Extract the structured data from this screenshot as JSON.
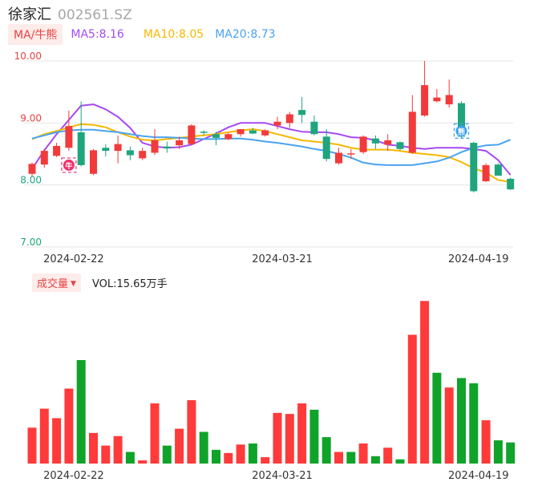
{
  "header": {
    "name": "徐家汇",
    "code": "002561.SZ"
  },
  "ma_legend": {
    "tag": "MA/牛熊",
    "items": [
      {
        "label": "MA5:8.16",
        "color": "#a64af0"
      },
      {
        "label": "MA10:8.05",
        "color": "#f5b800"
      },
      {
        "label": "MA20:8.73",
        "color": "#4aa3f0"
      }
    ]
  },
  "volume_legend": {
    "tag": "成交量",
    "value": "VOL:15.65万手"
  },
  "colors": {
    "up": "#f23a3a",
    "down": "#1fa57e",
    "vol_up": "#ff3a3a",
    "vol_down": "#10a32a",
    "grid": "#e6e6e6"
  },
  "icons": {
    "bull": "bull-icon",
    "bear": "bear-icon"
  },
  "chart_data": [
    {
      "type": "candlestick",
      "title": "",
      "ylim": [
        7.0,
        10.0
      ],
      "y_ticks": [
        "10.00",
        "9.00",
        "8.00",
        "7.00"
      ],
      "x_ticks": [
        "2024-02-22",
        "2024-03-21",
        "2024-04-19"
      ],
      "x_tick_index": [
        3,
        20,
        36
      ],
      "candles": [
        {
          "o": 8.18,
          "h": 8.36,
          "l": 8.14,
          "c": 8.34
        },
        {
          "o": 8.33,
          "h": 8.58,
          "l": 8.28,
          "c": 8.55
        },
        {
          "o": 8.47,
          "h": 8.68,
          "l": 8.45,
          "c": 8.63
        },
        {
          "o": 8.6,
          "h": 9.2,
          "l": 8.55,
          "c": 8.95
        },
        {
          "o": 8.85,
          "h": 9.35,
          "l": 8.3,
          "c": 8.32
        },
        {
          "o": 8.18,
          "h": 8.58,
          "l": 8.16,
          "c": 8.56
        },
        {
          "o": 8.6,
          "h": 8.66,
          "l": 8.46,
          "c": 8.55
        },
        {
          "o": 8.55,
          "h": 8.8,
          "l": 8.35,
          "c": 8.66
        },
        {
          "o": 8.56,
          "h": 8.62,
          "l": 8.4,
          "c": 8.48
        },
        {
          "o": 8.43,
          "h": 8.6,
          "l": 8.4,
          "c": 8.55
        },
        {
          "o": 8.52,
          "h": 8.9,
          "l": 8.48,
          "c": 8.72
        },
        {
          "o": 8.62,
          "h": 8.7,
          "l": 8.52,
          "c": 8.59
        },
        {
          "o": 8.64,
          "h": 8.78,
          "l": 8.58,
          "c": 8.72
        },
        {
          "o": 8.66,
          "h": 8.98,
          "l": 8.64,
          "c": 8.96
        },
        {
          "o": 8.86,
          "h": 8.88,
          "l": 8.8,
          "c": 8.85
        },
        {
          "o": 8.82,
          "h": 8.86,
          "l": 8.64,
          "c": 8.76
        },
        {
          "o": 8.74,
          "h": 8.84,
          "l": 8.72,
          "c": 8.82
        },
        {
          "o": 8.82,
          "h": 8.9,
          "l": 8.78,
          "c": 8.9
        },
        {
          "o": 8.88,
          "h": 8.92,
          "l": 8.82,
          "c": 8.83
        },
        {
          "o": 8.8,
          "h": 8.9,
          "l": 8.78,
          "c": 8.88
        },
        {
          "o": 8.96,
          "h": 9.1,
          "l": 8.9,
          "c": 9.02
        },
        {
          "o": 9.0,
          "h": 9.18,
          "l": 8.92,
          "c": 9.14
        },
        {
          "o": 9.21,
          "h": 9.42,
          "l": 9.0,
          "c": 9.13
        },
        {
          "o": 9.02,
          "h": 9.12,
          "l": 8.8,
          "c": 8.82
        },
        {
          "o": 8.78,
          "h": 8.9,
          "l": 8.38,
          "c": 8.42
        },
        {
          "o": 8.35,
          "h": 8.6,
          "l": 8.33,
          "c": 8.52
        },
        {
          "o": 8.5,
          "h": 8.58,
          "l": 8.42,
          "c": 8.51
        },
        {
          "o": 8.53,
          "h": 8.8,
          "l": 8.5,
          "c": 8.78
        },
        {
          "o": 8.75,
          "h": 8.8,
          "l": 8.58,
          "c": 8.67
        },
        {
          "o": 8.65,
          "h": 8.82,
          "l": 8.55,
          "c": 8.72
        },
        {
          "o": 8.69,
          "h": 8.7,
          "l": 8.56,
          "c": 8.58
        },
        {
          "o": 8.52,
          "h": 9.45,
          "l": 8.5,
          "c": 9.18
        },
        {
          "o": 9.12,
          "h": 10.0,
          "l": 9.1,
          "c": 9.61
        },
        {
          "o": 9.35,
          "h": 9.55,
          "l": 9.33,
          "c": 9.41
        },
        {
          "o": 9.3,
          "h": 9.7,
          "l": 9.25,
          "c": 9.45
        },
        {
          "o": 9.32,
          "h": 9.35,
          "l": 8.75,
          "c": 8.78
        },
        {
          "o": 8.68,
          "h": 8.7,
          "l": 7.88,
          "c": 7.9
        },
        {
          "o": 8.06,
          "h": 8.35,
          "l": 8.05,
          "c": 8.32
        },
        {
          "o": 8.33,
          "h": 8.35,
          "l": 8.15,
          "c": 8.15
        },
        {
          "o": 8.1,
          "h": 8.12,
          "l": 7.92,
          "c": 7.93
        }
      ],
      "series": [
        {
          "name": "MA5",
          "values": [
            8.26,
            8.56,
            8.82,
            9.05,
            9.28,
            9.3,
            9.22,
            9.1,
            8.92,
            8.68,
            8.62,
            8.6,
            8.61,
            8.65,
            8.74,
            8.83,
            8.93,
            9.0,
            9.0,
            9.0,
            8.95,
            8.9,
            8.86,
            8.85,
            8.85,
            8.82,
            8.77,
            8.76,
            8.72,
            8.65,
            8.63,
            8.6,
            8.58,
            8.6,
            8.6,
            8.6,
            8.58,
            8.55,
            8.4,
            8.16
          ]
        },
        {
          "name": "MA10",
          "values": [
            8.74,
            8.82,
            8.87,
            8.93,
            8.98,
            8.97,
            8.93,
            8.85,
            8.78,
            8.73,
            8.72,
            8.74,
            8.76,
            8.78,
            8.8,
            8.82,
            8.85,
            8.88,
            8.9,
            8.87,
            8.82,
            8.77,
            8.72,
            8.7,
            8.68,
            8.65,
            8.6,
            8.57,
            8.57,
            8.57,
            8.55,
            8.52,
            8.5,
            8.48,
            8.45,
            8.37,
            8.27,
            8.2,
            8.08,
            8.05
          ]
        },
        {
          "name": "MA20",
          "values": [
            8.75,
            8.8,
            8.85,
            8.88,
            8.89,
            8.89,
            8.87,
            8.85,
            8.82,
            8.79,
            8.77,
            8.77,
            8.76,
            8.75,
            8.74,
            8.74,
            8.75,
            8.75,
            8.73,
            8.7,
            8.68,
            8.65,
            8.62,
            8.58,
            8.55,
            8.5,
            8.44,
            8.36,
            8.33,
            8.32,
            8.32,
            8.32,
            8.35,
            8.38,
            8.44,
            8.53,
            8.6,
            8.64,
            8.65,
            8.73
          ]
        }
      ],
      "markers": [
        {
          "type": "bull",
          "index": 3,
          "value": 8.32
        },
        {
          "type": "bear",
          "index": 35,
          "value": 8.87
        }
      ]
    },
    {
      "type": "bar",
      "title": "",
      "ylabel": "",
      "x_ticks": [
        "2024-02-22",
        "2024-03-21",
        "2024-04-19"
      ],
      "x_tick_index": [
        3,
        20,
        36
      ],
      "values": [
        3.4,
        5.2,
        4.3,
        7.1,
        9.8,
        2.9,
        1.7,
        2.6,
        1.1,
        0.3,
        5.7,
        1.7,
        3.3,
        6.0,
        3.0,
        1.3,
        1.0,
        1.8,
        1.9,
        0.6,
        4.8,
        4.7,
        5.7,
        5.1,
        2.5,
        1.1,
        1.1,
        1.9,
        0.7,
        1.5,
        0.4,
        12.2,
        15.4,
        8.6,
        7.2,
        8.1,
        7.6,
        4.1,
        2.2,
        2.0
      ],
      "up": [
        1,
        1,
        1,
        1,
        0,
        1,
        1,
        1,
        0,
        1,
        1,
        0,
        1,
        1,
        0,
        0,
        1,
        1,
        0,
        1,
        1,
        1,
        1,
        0,
        0,
        1,
        0,
        1,
        0,
        1,
        0,
        1,
        1,
        0,
        1,
        0,
        0,
        1,
        0,
        0
      ],
      "ylim": [
        0,
        15.65
      ]
    }
  ]
}
